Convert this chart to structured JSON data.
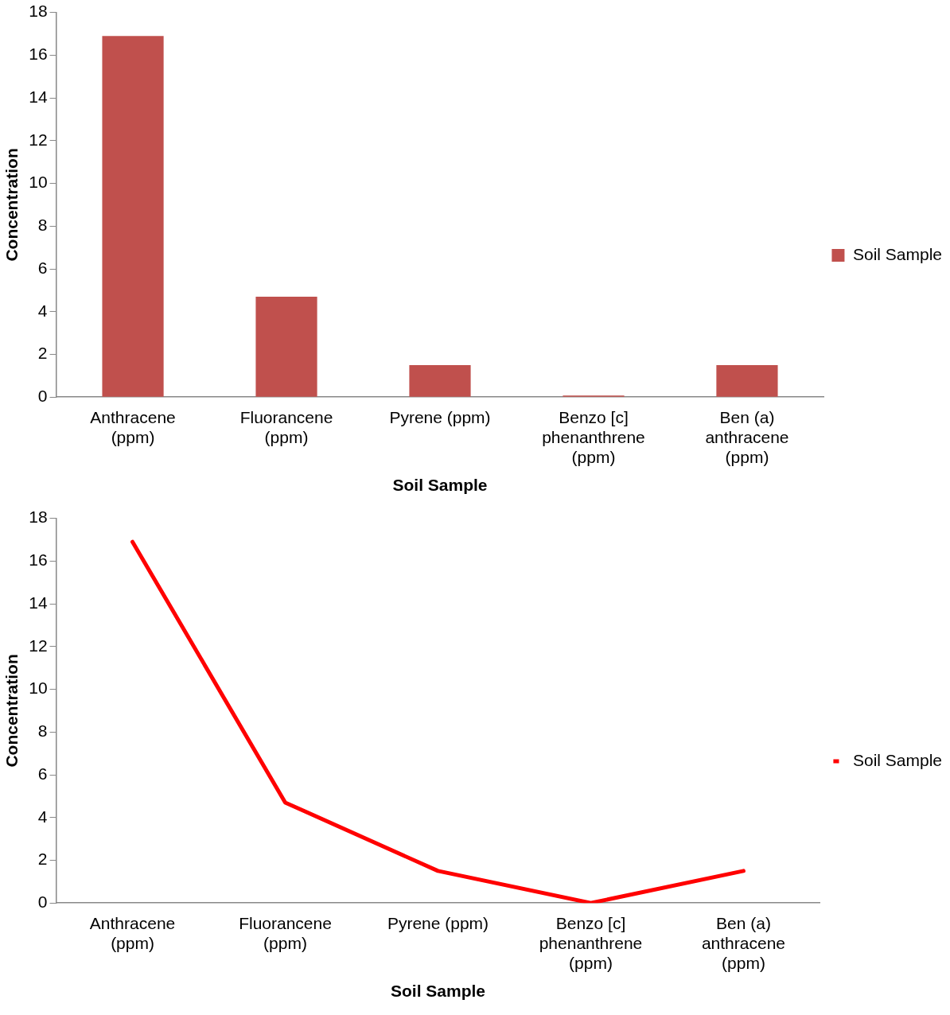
{
  "chart_data": [
    {
      "type": "bar",
      "xlabel": "Soil Sample",
      "ylabel": "Concentration",
      "categories": [
        "Anthracene (ppm)",
        "Fluorancene (ppm)",
        "Pyrene (ppm)",
        "Benzo [c] phenanthrene (ppm)",
        "Ben (a) anthracene (ppm)"
      ],
      "series": [
        {
          "name": "Soil Sample",
          "color": "#c0504d",
          "values": [
            16.9,
            4.7,
            1.5,
            0,
            1.5
          ]
        }
      ],
      "ylim": [
        0,
        18
      ],
      "yticks": [
        0,
        2,
        4,
        6,
        8,
        10,
        12,
        14,
        16,
        18
      ],
      "grid": false,
      "legend": "right"
    },
    {
      "type": "line",
      "xlabel": "Soil Sample",
      "ylabel": "Concentration",
      "categories": [
        "Anthracene (ppm)",
        "Fluorancene (ppm)",
        "Pyrene (ppm)",
        "Benzo [c] phenanthrene (ppm)",
        "Ben (a) anthracene (ppm)"
      ],
      "series": [
        {
          "name": "Soil Sample",
          "color": "#ff0000",
          "values": [
            16.9,
            4.7,
            1.5,
            0,
            1.5
          ]
        }
      ],
      "ylim": [
        0,
        18
      ],
      "yticks": [
        0,
        2,
        4,
        6,
        8,
        10,
        12,
        14,
        16,
        18
      ],
      "grid": false,
      "legend": "right",
      "marker": "none"
    }
  ]
}
